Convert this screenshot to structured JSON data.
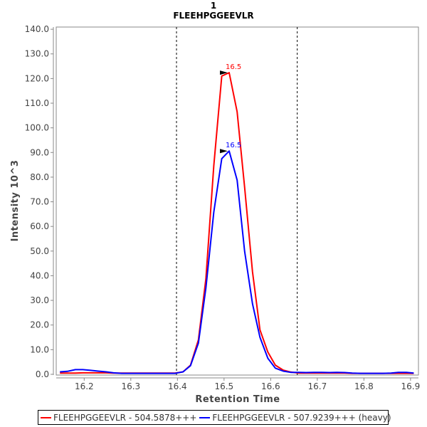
{
  "chart_data": {
    "type": "line",
    "title": "1",
    "subtitle": "FLEEHPGGEEVLR",
    "xlabel": "Retention Time",
    "ylabel": "Intensity 10^3",
    "xlim": [
      16.14,
      16.917
    ],
    "ylim": [
      -0.3,
      140.9
    ],
    "xticks": [
      "16.2",
      "16.3",
      "16.4",
      "16.5",
      "16.6",
      "16.7",
      "16.8",
      "16.9"
    ],
    "yticks": [
      "0.0",
      "10.0",
      "20.0",
      "30.0",
      "40.0",
      "50.0",
      "60.0",
      "70.0",
      "80.0",
      "90.0",
      "100.0",
      "110.0",
      "120.0",
      "130.0",
      "140.0"
    ],
    "grid": false,
    "integration_boundaries": [
      16.398,
      16.657
    ],
    "x": [
      16.148,
      16.164,
      16.181,
      16.197,
      16.214,
      16.23,
      16.247,
      16.263,
      16.28,
      16.296,
      16.313,
      16.329,
      16.346,
      16.362,
      16.379,
      16.395,
      16.412,
      16.428,
      16.445,
      16.461,
      16.478,
      16.495,
      16.511,
      16.528,
      16.544,
      16.561,
      16.577,
      16.594,
      16.61,
      16.627,
      16.643,
      16.66,
      16.676,
      16.693,
      16.709,
      16.726,
      16.742,
      16.759,
      16.775,
      16.792,
      16.808,
      16.825,
      16.841,
      16.858,
      16.874,
      16.891,
      16.907
    ],
    "series": [
      {
        "name": "FLEEHPGGEEVLR - 504.5878+++",
        "color": "#ff0000",
        "values": [
          0.5,
          0.5,
          0.5,
          0.6,
          0.6,
          0.6,
          0.6,
          0.5,
          0.5,
          0.5,
          0.5,
          0.5,
          0.5,
          0.5,
          0.5,
          0.5,
          1.0,
          3.7,
          14,
          38.7,
          84.6,
          121,
          122.4,
          106.5,
          76,
          41.6,
          18,
          9,
          3.7,
          1.7,
          0.9,
          0.5,
          0.5,
          0.5,
          0.5,
          0.5,
          0.5,
          0.5,
          0.4,
          0.4,
          0.4,
          0.4,
          0.4,
          0.4,
          0.4,
          0.4,
          0.4
        ],
        "peak_label": "16.5",
        "peak_x": 16.511,
        "peak_y": 122.4
      },
      {
        "name": "FLEEHPGGEEVLR - 507.9239+++ (heavy)",
        "color": "#0000ff",
        "values": [
          1.0,
          1.2,
          1.9,
          1.9,
          1.6,
          1.3,
          1.0,
          0.6,
          0.4,
          0.4,
          0.4,
          0.4,
          0.4,
          0.4,
          0.4,
          0.4,
          1.0,
          3.5,
          12.7,
          35,
          65.8,
          87.5,
          90.6,
          78.8,
          50,
          28.6,
          15,
          6.5,
          2.5,
          1.3,
          0.8,
          0.8,
          0.7,
          0.8,
          0.8,
          0.7,
          0.8,
          0.7,
          0.5,
          0.4,
          0.4,
          0.4,
          0.4,
          0.5,
          0.8,
          0.8,
          0.5
        ],
        "peak_label": "16.5",
        "peak_x": 16.511,
        "peak_y": 90.6
      }
    ],
    "legend": "bottom"
  }
}
